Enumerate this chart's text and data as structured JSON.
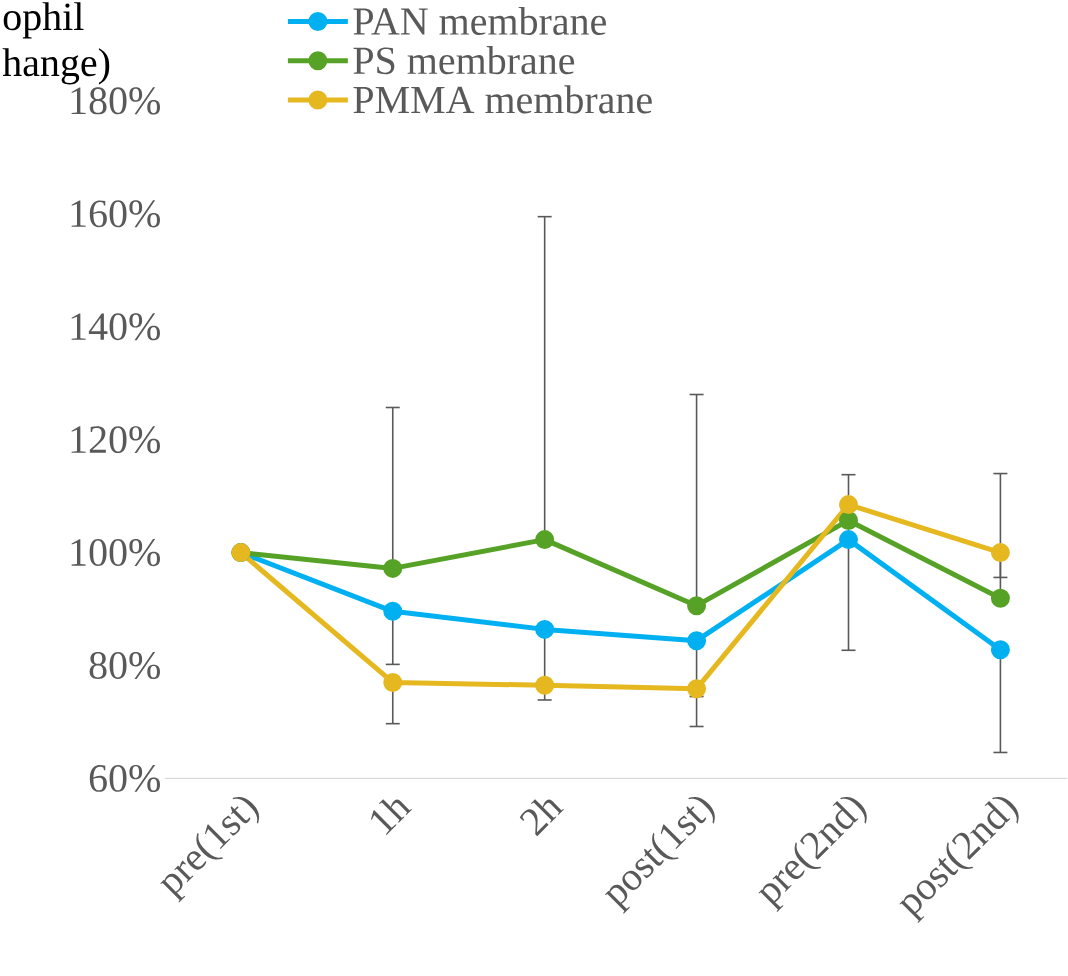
{
  "chart_data": {
    "type": "line",
    "ylabel": "ophil\nhange)",
    "categories": [
      "pre(1st)",
      "1h",
      "2h",
      "post(1st)",
      "pre(2nd)",
      "post(2nd)"
    ],
    "series": [
      {
        "name": "PAN membrane",
        "color": "#00b0f0",
        "values": [
          100,
          89.6,
          86.4,
          84.4,
          102.3,
          82.8
        ],
        "errors": [
          null,
          [
            80.2,
            89.6
          ],
          [
            73.9,
            86.4
          ],
          [
            74.5,
            84.4
          ],
          [
            82.7,
            102.3
          ],
          [
            64.6,
            82.8
          ]
        ]
      },
      {
        "name": "PS membrane",
        "color": "#56a226",
        "values": [
          100,
          97.2,
          102.3,
          90.6,
          105.7,
          91.9
        ],
        "errors": [
          null,
          [
            97.2,
            125.7
          ],
          [
            102.3,
            159.5
          ],
          [
            90.6,
            128
          ],
          [
            105.7,
            113.8
          ],
          [
            91.9,
            114
          ]
        ]
      },
      {
        "name": "PMMA membrane",
        "color": "#e6b820",
        "values": [
          100,
          77,
          76.5,
          75.9,
          108.5,
          100
        ],
        "errors": [
          null,
          [
            69.7,
            77
          ],
          null,
          [
            69.2,
            75.9
          ],
          null,
          [
            95.6,
            100
          ]
        ]
      }
    ],
    "ylim": [
      60,
      180
    ],
    "yticks": [
      {
        "value": 60,
        "label": "60%"
      },
      {
        "value": 80,
        "label": "80%"
      },
      {
        "value": 100,
        "label": "100%"
      },
      {
        "value": 120,
        "label": "120%"
      },
      {
        "value": 140,
        "label": "140%"
      },
      {
        "value": 160,
        "label": "160%"
      },
      {
        "value": 180,
        "label": "180%"
      }
    ],
    "grid": false,
    "legend": "top",
    "marker": "circle",
    "line_style": "solid"
  }
}
